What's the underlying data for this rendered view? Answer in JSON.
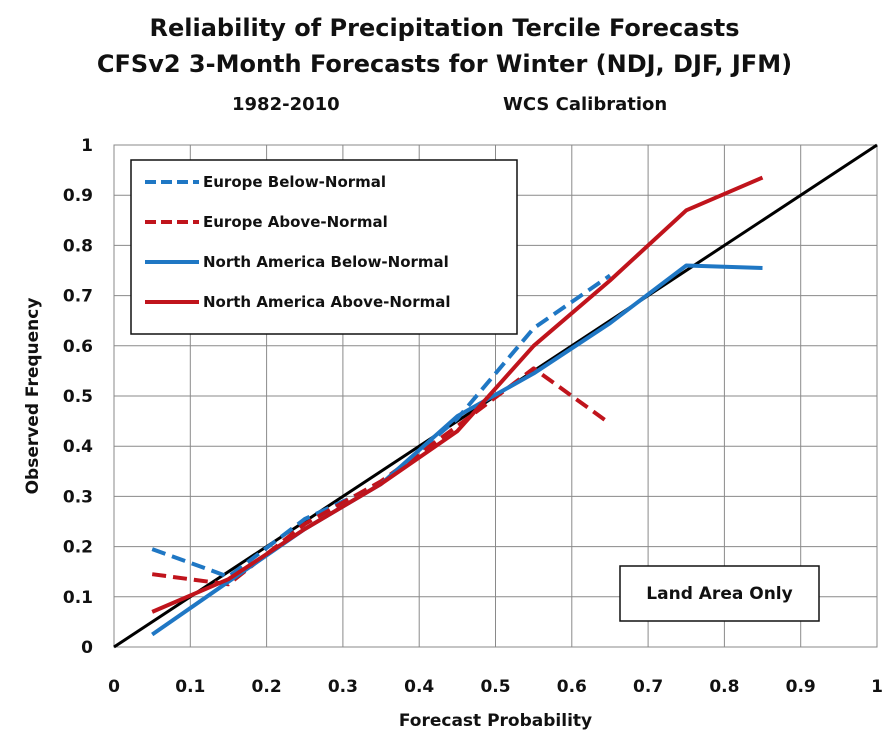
{
  "chart_data": {
    "type": "line",
    "title": "Reliability of Precipitation Tercile Forecasts",
    "subtitle": "CFSv2 3-Month Forecasts for Winter (NDJ, DJF, JFM)",
    "subtitle_left": "1982-2010",
    "subtitle_right": "WCS Calibration",
    "xlabel": "Forecast Probability",
    "ylabel": "Observed Frequency",
    "xlim": [
      0,
      1
    ],
    "ylim": [
      0,
      1
    ],
    "xticks": [
      "0",
      "0.1",
      "0.2",
      "0.3",
      "0.4",
      "0.5",
      "0.6",
      "0.7",
      "0.8",
      "0.9",
      "1"
    ],
    "yticks": [
      "0",
      "0.1",
      "0.2",
      "0.3",
      "0.4",
      "0.5",
      "0.6",
      "0.7",
      "0.8",
      "0.9",
      "1"
    ],
    "grid": true,
    "legend_position": "top-left",
    "annotation": "Land Area Only",
    "series": [
      {
        "name": "Europe Below-Normal",
        "color": "#1f77c4",
        "dash": true,
        "x": [
          0.05,
          0.15,
          0.25,
          0.35,
          0.45,
          0.55,
          0.65
        ],
        "y": [
          0.195,
          0.14,
          0.255,
          0.325,
          0.455,
          0.635,
          0.74
        ]
      },
      {
        "name": "Europe Above-Normal",
        "color": "#c0141c",
        "dash": true,
        "x": [
          0.05,
          0.15,
          0.25,
          0.35,
          0.45,
          0.55,
          0.65
        ],
        "y": [
          0.145,
          0.125,
          0.245,
          0.33,
          0.44,
          0.555,
          0.445
        ]
      },
      {
        "name": "North America Below-Normal",
        "color": "#1f77c4",
        "dash": false,
        "x": [
          0.05,
          0.15,
          0.25,
          0.35,
          0.45,
          0.55,
          0.65,
          0.75,
          0.85
        ],
        "y": [
          0.025,
          0.13,
          0.235,
          0.325,
          0.46,
          0.545,
          0.645,
          0.76,
          0.755
        ]
      },
      {
        "name": "North America Above-Normal",
        "color": "#c0141c",
        "dash": false,
        "x": [
          0.05,
          0.15,
          0.25,
          0.35,
          0.45,
          0.55,
          0.65,
          0.75,
          0.85
        ],
        "y": [
          0.07,
          0.135,
          0.235,
          0.325,
          0.43,
          0.6,
          0.73,
          0.87,
          0.935
        ]
      },
      {
        "name": "",
        "color": "#000000",
        "dash": false,
        "reference": true,
        "x": [
          0,
          1
        ],
        "y": [
          0,
          1
        ]
      }
    ]
  }
}
